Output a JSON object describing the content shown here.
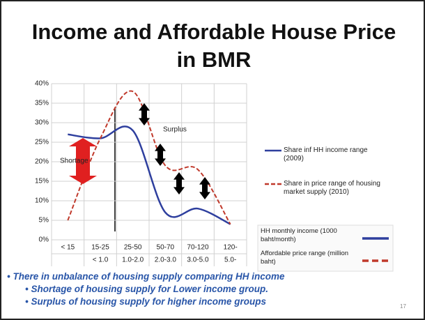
{
  "title": "Income and Affordable House Price in BMR",
  "chart_data": {
    "type": "line",
    "categories": [
      "< 15",
      "15-25",
      "25-50",
      "50-70",
      "70-120",
      "120-"
    ],
    "sublabels": [
      null,
      "< 1.0",
      "1.0-2.0",
      "2.0-3.0",
      "3.0-5.0",
      "5.0-"
    ],
    "series": [
      {
        "name": "Share inf HH income range (2009)",
        "color": "#2e3f9e",
        "dash": false,
        "values": [
          27,
          26,
          28,
          7,
          8,
          4
        ]
      },
      {
        "name": "Share in price range of housing market supply (2010)",
        "color": "#c0392b",
        "dash": true,
        "values": [
          5,
          26,
          38,
          19,
          18,
          4
        ]
      }
    ],
    "ylim": [
      0,
      40
    ],
    "yticks": [
      {
        "value": 0,
        "label": "0%"
      },
      {
        "value": 5,
        "label": "5%"
      },
      {
        "value": 10,
        "label": "10%"
      },
      {
        "value": 15,
        "label": "15%"
      },
      {
        "value": 20,
        "label": "20%"
      },
      {
        "value": 25,
        "label": "25%"
      },
      {
        "value": 30,
        "label": "30%"
      },
      {
        "value": 35,
        "label": "35%"
      },
      {
        "value": 40,
        "label": "40%"
      }
    ],
    "grid": true,
    "annotations": [
      "Surplus",
      "Shortage"
    ],
    "inset_legend": [
      "HH monthly income (1000 baht/month)",
      "Affordable price range (million baht)"
    ]
  },
  "bullets": [
    {
      "text": "There in unbalance of housing supply comparing HH income",
      "level": 1
    },
    {
      "text": "Shortage of housing supply for Lower income group.",
      "level": 2
    },
    {
      "text": "Surplus of housing supply for higher income groups",
      "level": 2
    }
  ],
  "slide_number": "17"
}
